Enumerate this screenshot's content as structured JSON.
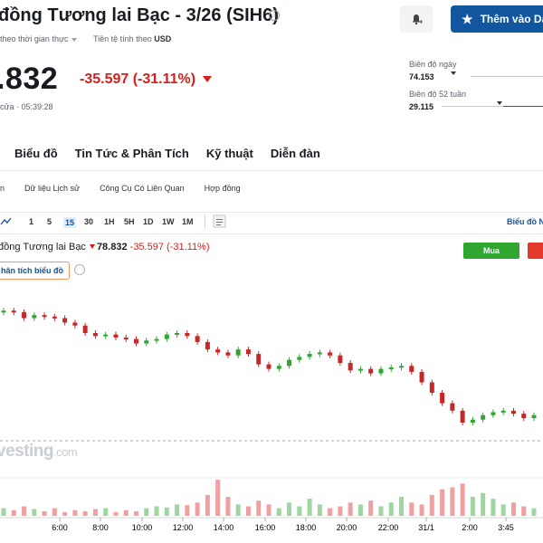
{
  "header": {
    "title": "đồng Tương lai Bạc - 3/26 (SIH6)",
    "watchlist_label": "Thêm vào Da",
    "realtime_label": "theo thời gian thực",
    "currency_label": "Tiền tệ tính theo",
    "currency": "USD"
  },
  "quote": {
    "price": ".832",
    "change": "-35.597 (-31.11%)",
    "time": "cửa · 05:39:28"
  },
  "ranges": {
    "day_label": "Biên độ ngày",
    "day_value": "74.153",
    "week52_label": "Biên độ 52 tuần",
    "week52_value": "29.115"
  },
  "tabs": [
    "Biểu đồ",
    "Tin Tức & Phân Tích",
    "Kỹ thuật",
    "Diễn đàn"
  ],
  "subtabs": [
    "n",
    "Dữ liệu Lịch sử",
    "Công Cụ Có Liên Quan",
    "Hợp đồng"
  ],
  "toolbar": {
    "timeframes": [
      "1",
      "5",
      "15",
      "30",
      "1H",
      "5H",
      "1D",
      "1W",
      "1M"
    ],
    "active": "15",
    "chart_link": "Biểu đồ N"
  },
  "legend": {
    "name": "đồng Tương lai Bạc",
    "price": "78.832",
    "change": "-35.597 (-31.11%)"
  },
  "buttons": {
    "buy": "Mua",
    "analysis": "hân tích biểu đồ"
  },
  "watermark": {
    "main": "vesting",
    "suffix": ".com"
  },
  "colors": {
    "up": "#2fa630",
    "down": "#c62828",
    "accent": "#1256a0",
    "sell": "#e33a2d"
  },
  "chart_data": {
    "type": "candlestick",
    "x_tick_labels": [
      "6:00",
      "8:00",
      "10:00",
      "12:00",
      "14:00",
      "16:00",
      "18:00",
      "20:00",
      "22:00",
      "31/1",
      "2:00",
      "3:45"
    ],
    "price_levels": [
      0.05,
      0.06,
      0.1,
      0.08,
      0.09,
      0.1,
      0.13,
      0.15,
      0.2,
      0.22,
      0.21,
      0.23,
      0.24,
      0.27,
      0.25,
      0.24,
      0.21,
      0.2,
      0.22,
      0.26,
      0.31,
      0.33,
      0.35,
      0.31,
      0.34,
      0.41,
      0.44,
      0.42,
      0.38,
      0.36,
      0.34,
      0.33,
      0.35,
      0.4,
      0.45,
      0.44,
      0.47,
      0.44,
      0.43,
      0.42,
      0.46,
      0.53,
      0.6,
      0.67,
      0.72,
      0.8,
      0.78,
      0.75,
      0.73,
      0.72,
      0.74,
      0.77,
      0.75
    ],
    "volume_levels": [
      0.2,
      0.15,
      0.25,
      0.18,
      0.12,
      0.2,
      0.1,
      0.15,
      0.12,
      0.18,
      0.2,
      0.1,
      0.15,
      0.12,
      0.2,
      0.25,
      0.22,
      0.3,
      0.28,
      0.35,
      0.55,
      0.95,
      0.5,
      0.3,
      0.25,
      0.4,
      0.3,
      0.2,
      0.35,
      0.25,
      0.45,
      0.3,
      0.2,
      0.25,
      0.35,
      0.3,
      0.4,
      0.25,
      0.35,
      0.5,
      0.35,
      0.3,
      0.55,
      0.7,
      0.75,
      0.85,
      0.5,
      0.6,
      0.45,
      0.3,
      0.35,
      0.25,
      0.2
    ]
  }
}
